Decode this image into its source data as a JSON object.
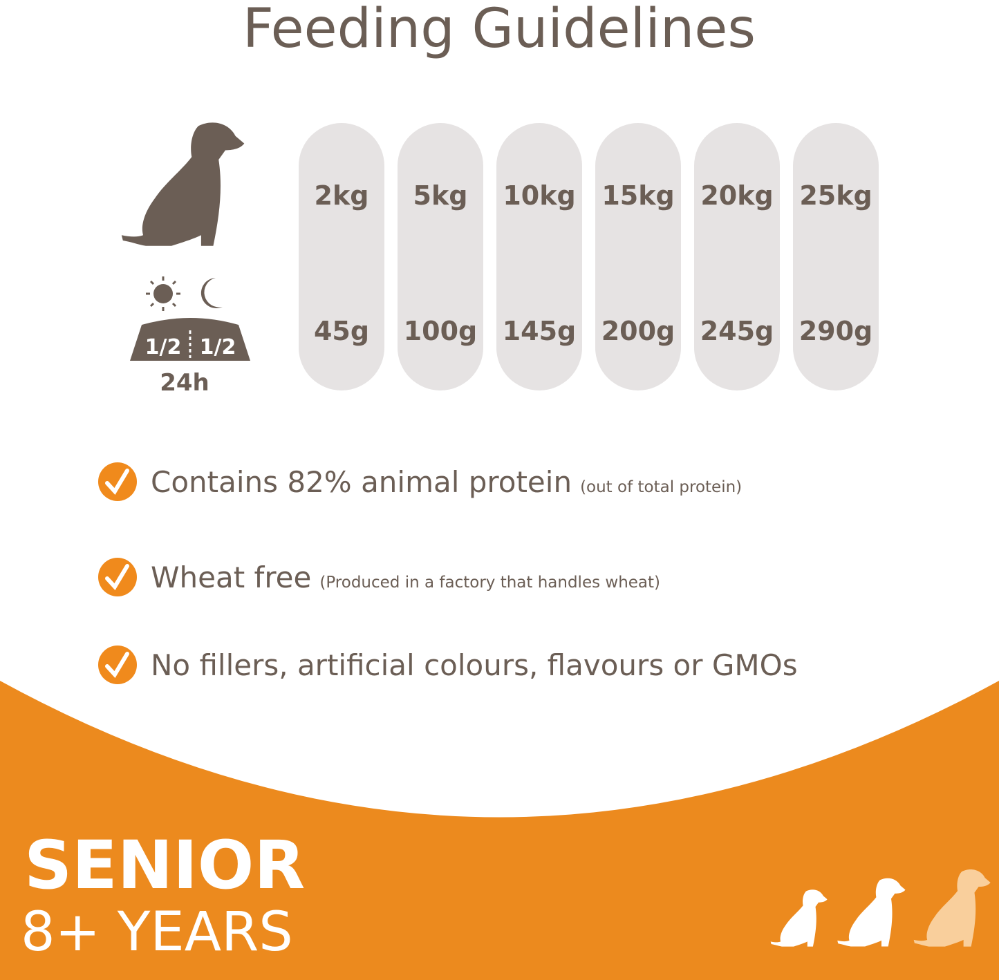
{
  "header": {
    "title": "Feeding Guidelines"
  },
  "icon": {
    "portion_left": "1/2",
    "portion_right": "1/2",
    "period": "24h"
  },
  "table": {
    "weights": [
      "2kg",
      "5kg",
      "10kg",
      "15kg",
      "20kg",
      "25kg"
    ],
    "amounts": [
      "45g",
      "100g",
      "145g",
      "200g",
      "245g",
      "290g"
    ]
  },
  "features": [
    {
      "text": "Contains 82% animal protein",
      "note": "(out of total protein)"
    },
    {
      "text": "Wheat free",
      "note": "(Produced in a factory that handles wheat)"
    },
    {
      "text": "No fillers, artificial colours, flavours or GMOs",
      "note": null
    }
  ],
  "footer": {
    "stage": "SENIOR",
    "age": "8+ YEARS"
  }
}
